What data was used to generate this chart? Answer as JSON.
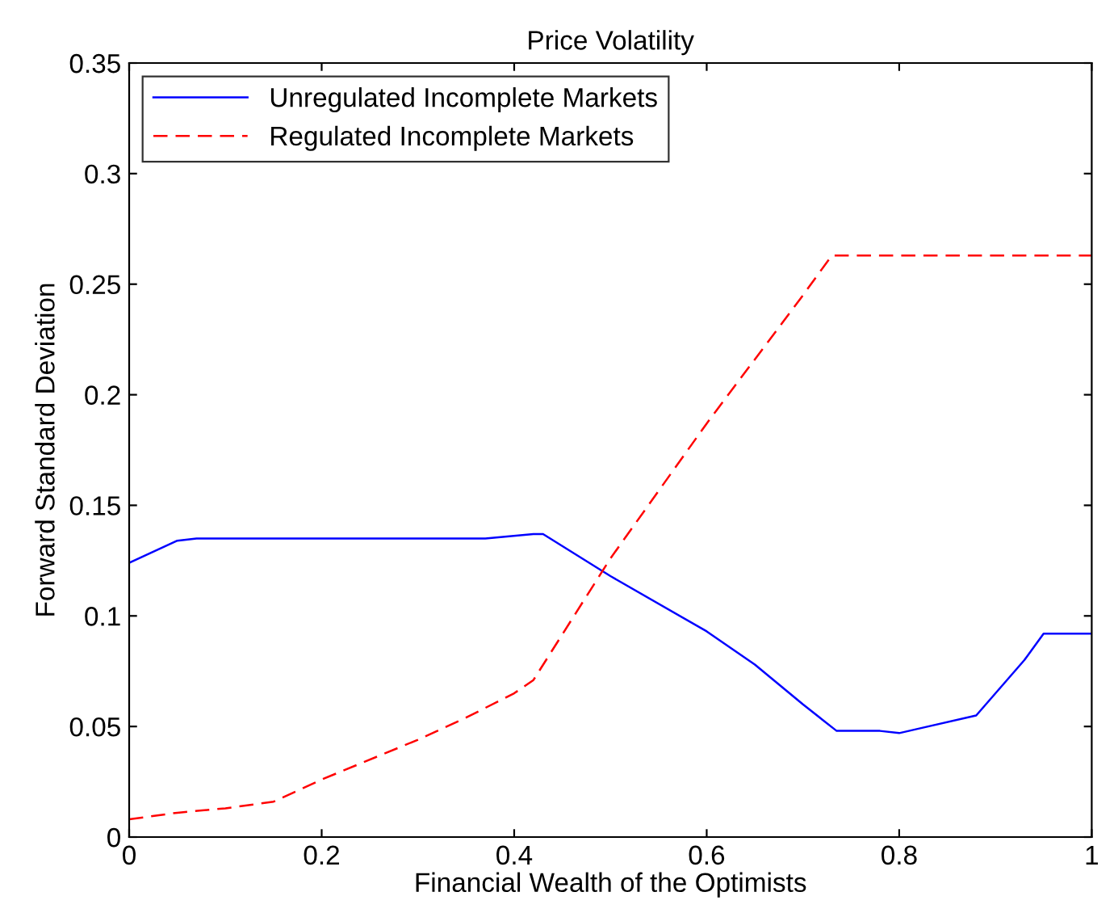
{
  "chart_data": {
    "type": "line",
    "title": "Price Volatility",
    "xlabel": "Financial Wealth of the Optimists",
    "ylabel": "Forward Standard Deviation",
    "xlim": [
      0,
      1
    ],
    "ylim": [
      0,
      0.35
    ],
    "xticks": [
      0,
      0.2,
      0.4,
      0.6,
      0.8,
      1
    ],
    "yticks": [
      0,
      0.05,
      0.1,
      0.15,
      0.2,
      0.25,
      0.3,
      0.35
    ],
    "legend": "top left",
    "grid": false,
    "series": [
      {
        "name": "Unregulated Incomplete Markets",
        "color": "#0000ff",
        "line_style": "solid",
        "x": [
          0,
          0.05,
          0.07,
          0.37,
          0.42,
          0.43,
          0.5,
          0.6,
          0.65,
          0.7,
          0.735,
          0.78,
          0.8,
          0.82,
          0.88,
          0.93,
          0.95,
          1
        ],
        "values": [
          0.124,
          0.134,
          0.135,
          0.135,
          0.137,
          0.137,
          0.118,
          0.093,
          0.078,
          0.06,
          0.048,
          0.048,
          0.047,
          0.049,
          0.055,
          0.08,
          0.092,
          0.092
        ]
      },
      {
        "name": "Regulated Incomplete Markets",
        "color": "#ff0000",
        "line_style": "dashed",
        "x": [
          0,
          0.05,
          0.1,
          0.15,
          0.2,
          0.3,
          0.35,
          0.4,
          0.42,
          0.5,
          0.6,
          0.7,
          0.73,
          1
        ],
        "values": [
          0.008,
          0.011,
          0.013,
          0.016,
          0.026,
          0.044,
          0.054,
          0.065,
          0.071,
          0.126,
          0.187,
          0.245,
          0.263,
          0.263
        ]
      }
    ]
  }
}
